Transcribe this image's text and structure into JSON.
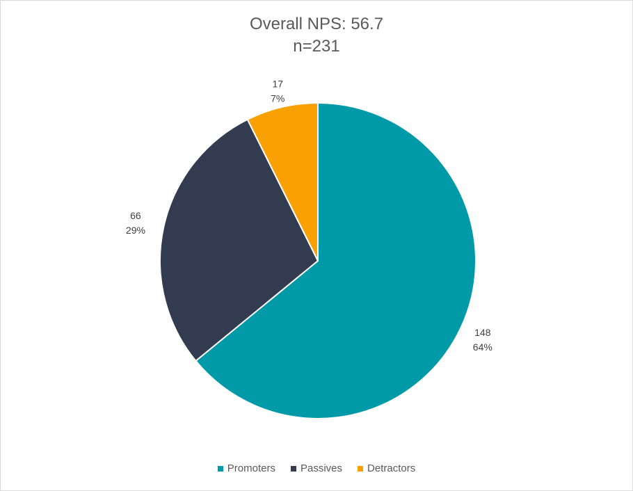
{
  "chart_data": {
    "type": "pie",
    "title": "Overall NPS: 56.7",
    "subtitle": "n=231",
    "slices": [
      {
        "name": "Promoters",
        "value": 148,
        "percent": "64%",
        "color": "#0099A8"
      },
      {
        "name": "Passives",
        "value": 66,
        "percent": "29%",
        "color": "#323B4F"
      },
      {
        "name": "Detractors",
        "value": 17,
        "percent": "7%",
        "color": "#F9A102"
      }
    ],
    "legend_position": "bottom"
  }
}
